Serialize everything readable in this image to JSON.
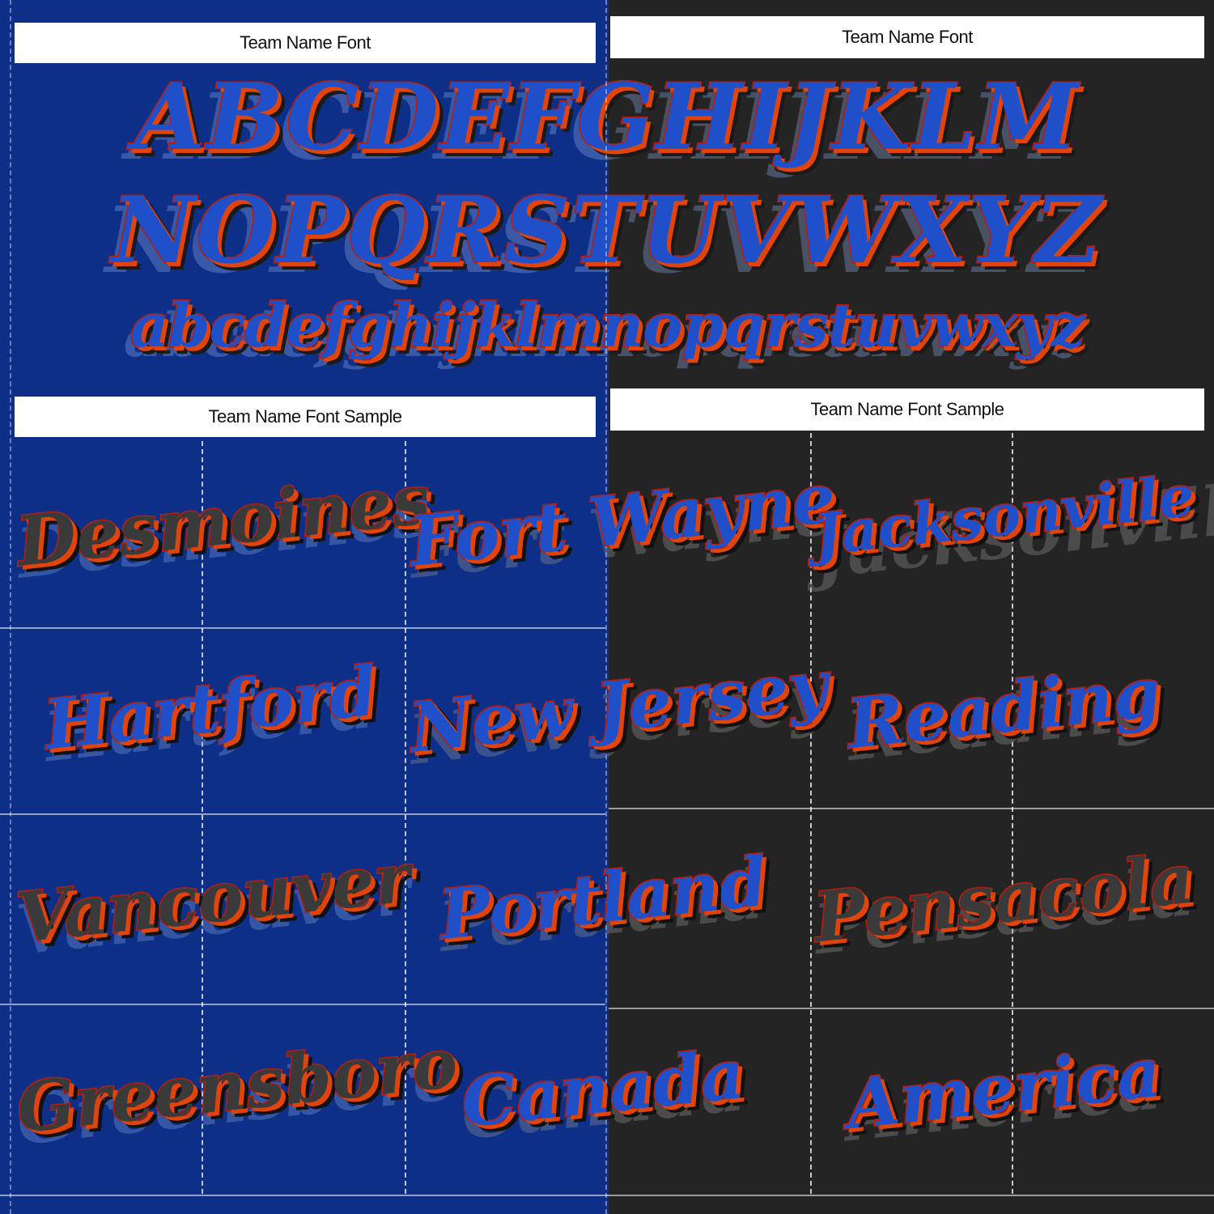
{
  "headers": {
    "top_left": "Team Name Font",
    "top_right": "Team Name Font",
    "bottom_left": "Team Name Font Sample",
    "bottom_right": "Team Name Font Sample"
  },
  "alphabet": {
    "upper_row_1": "ABCDEFGHIJKLM",
    "upper_row_2": "NOPQRSTUVWXYZ",
    "lower_row": "abcdefghijklmnopqrstuvwxyz"
  },
  "samples_left": [
    "Desmoines",
    "Hartford",
    "Vancouver",
    "Greensboro"
  ],
  "samples_middle": [
    "Fort Wayne",
    "New Jersey",
    "Portland",
    "Canada"
  ],
  "samples_right": [
    "Jacksonville",
    "Reading",
    "Pensacola",
    "America"
  ],
  "colors": {
    "panel_blue": "#0d2f87",
    "panel_dark": "#242424",
    "fill_royal": "#1f4fc9",
    "outline_red": "#b81d0c",
    "shadow_orange": "#e0440b",
    "shadow_black": "#111111"
  }
}
